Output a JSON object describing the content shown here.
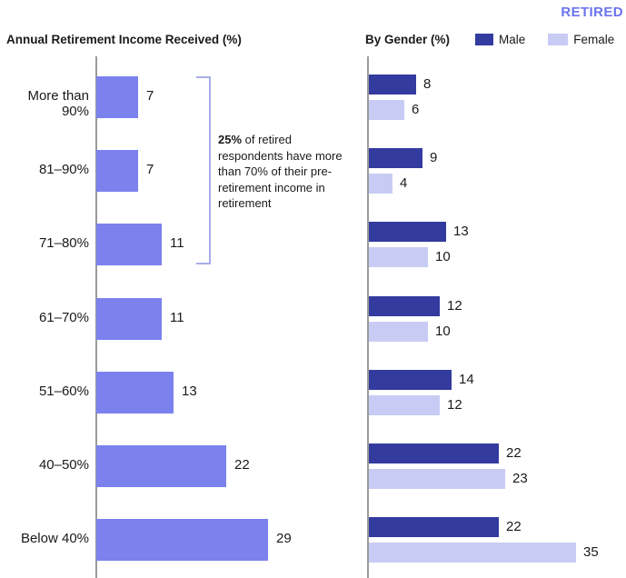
{
  "page": {
    "badge": "RETIRED"
  },
  "left_chart": {
    "title": "Annual Retirement Income Received (%)"
  },
  "right_chart": {
    "title": "By Gender (%)",
    "legend": [
      {
        "label": "Male"
      },
      {
        "label": "Female"
      }
    ]
  },
  "annotation": {
    "bold": "25%",
    "text": " of retired respondents have more than 70% of their pre-retirement income in retirement"
  },
  "colors": {
    "bar": "#7b82ed",
    "male": "#333b9f",
    "female": "#c8ccf4",
    "badge": "#6c74ed",
    "bracket": "#a8aee9",
    "axis": "#9a9a9a"
  },
  "chart_data": [
    {
      "type": "bar",
      "orientation": "horizontal",
      "title": "Annual Retirement Income Received (%)",
      "categories": [
        "More than 90%",
        "81–90%",
        "71–80%",
        "61–70%",
        "51–60%",
        "40–50%",
        "Below 40%"
      ],
      "values": [
        7,
        7,
        11,
        11,
        13,
        22,
        29
      ],
      "xlabel": "",
      "ylabel": "",
      "xlim": [
        0,
        35
      ],
      "grid": false,
      "value_labels": true
    },
    {
      "type": "bar",
      "orientation": "horizontal",
      "title": "By Gender (%)",
      "categories": [
        "More than 90%",
        "81–90%",
        "71–80%",
        "61–70%",
        "51–60%",
        "40–50%",
        "Below 40%"
      ],
      "series": [
        {
          "name": "Male",
          "values": [
            8,
            9,
            13,
            12,
            14,
            22,
            22
          ]
        },
        {
          "name": "Female",
          "values": [
            6,
            4,
            10,
            10,
            12,
            23,
            35
          ]
        }
      ],
      "xlabel": "",
      "ylabel": "",
      "xlim": [
        0,
        35
      ],
      "grid": false,
      "legend_position": "top",
      "value_labels": true
    }
  ]
}
